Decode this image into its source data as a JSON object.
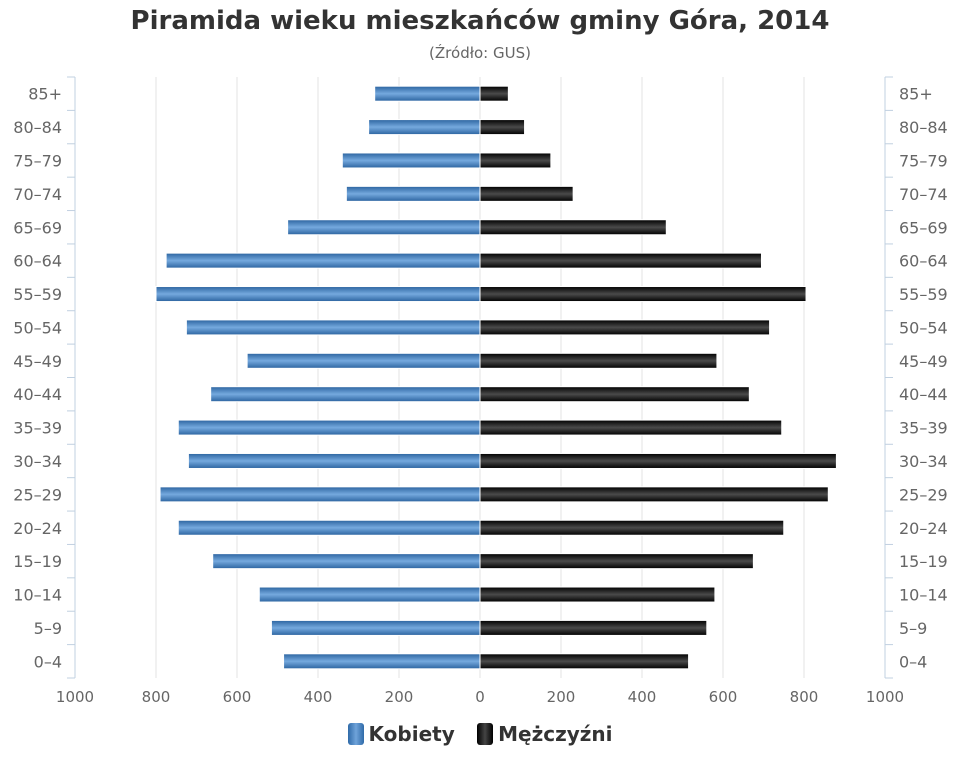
{
  "chart_data": {
    "type": "bar",
    "orientation": "horizontal",
    "layout": "population-pyramid",
    "title": "Piramida wieku mieszkańców gminy Góra, 2014",
    "subtitle": "(Źródło: GUS)",
    "categories": [
      "85+",
      "80–84",
      "75–79",
      "70–74",
      "65–69",
      "60–64",
      "55–59",
      "50–54",
      "45–49",
      "40–44",
      "35–39",
      "30–34",
      "25–29",
      "20–24",
      "15–19",
      "10–14",
      "5–9",
      "0–4"
    ],
    "x_tick_labels": [
      "1000",
      "800",
      "600",
      "400",
      "200",
      "0",
      "200",
      "400",
      "600",
      "800",
      "1000"
    ],
    "xlim": [
      -1000,
      1000
    ],
    "grid": true,
    "legend_position": "bottom",
    "series": [
      {
        "name": "Kobiety",
        "side": "left",
        "color": "#4a86c8",
        "values": [
          260,
          275,
          340,
          330,
          475,
          775,
          800,
          725,
          575,
          665,
          745,
          720,
          790,
          745,
          660,
          545,
          515,
          485
        ]
      },
      {
        "name": "Mężczyźni",
        "side": "right",
        "color": "#111111",
        "values": [
          70,
          110,
          175,
          230,
          460,
          695,
          805,
          715,
          585,
          665,
          745,
          880,
          860,
          750,
          675,
          580,
          560,
          515
        ]
      }
    ]
  }
}
